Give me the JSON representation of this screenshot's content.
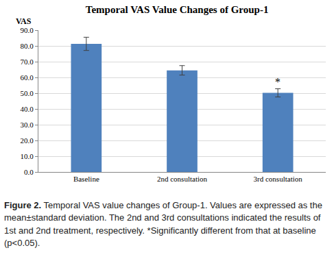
{
  "chart_data": {
    "type": "bar",
    "title": "Temporal VAS Value Changes of Group-1",
    "y_label": "VAS",
    "categories": [
      "Baseline",
      "2nd consultation",
      "3rd consultation"
    ],
    "values": [
      81.3,
      64.5,
      50.2
    ],
    "errors": [
      4.2,
      3.0,
      2.6
    ],
    "color": "#4f81bd",
    "ylim": [
      0,
      90
    ],
    "yticks": [
      {
        "value": 0,
        "label": "0.0"
      },
      {
        "value": 10,
        "label": "10.0"
      },
      {
        "value": 20,
        "label": "20.0"
      },
      {
        "value": 30,
        "label": "30.0"
      },
      {
        "value": 40,
        "label": "40.0"
      },
      {
        "value": 50,
        "label": "50.0"
      },
      {
        "value": 60,
        "label": "60.0"
      },
      {
        "value": 70,
        "label": "70.0"
      },
      {
        "value": 80,
        "label": "80.0"
      },
      {
        "value": 90,
        "label": "90.0"
      }
    ],
    "grid": true,
    "annotations": [
      {
        "category": "3rd consultation",
        "text": "*"
      }
    ],
    "caption": {
      "label": "Figure 2.",
      "text": "Temporal VAS value changes of Group-1. Values are expressed as the mean±standard deviation. The 2nd and 3rd consultations indicated the results of 1st and 2nd treatment, respectively. *Significantly different from that at baseline (p<0.05)."
    }
  }
}
